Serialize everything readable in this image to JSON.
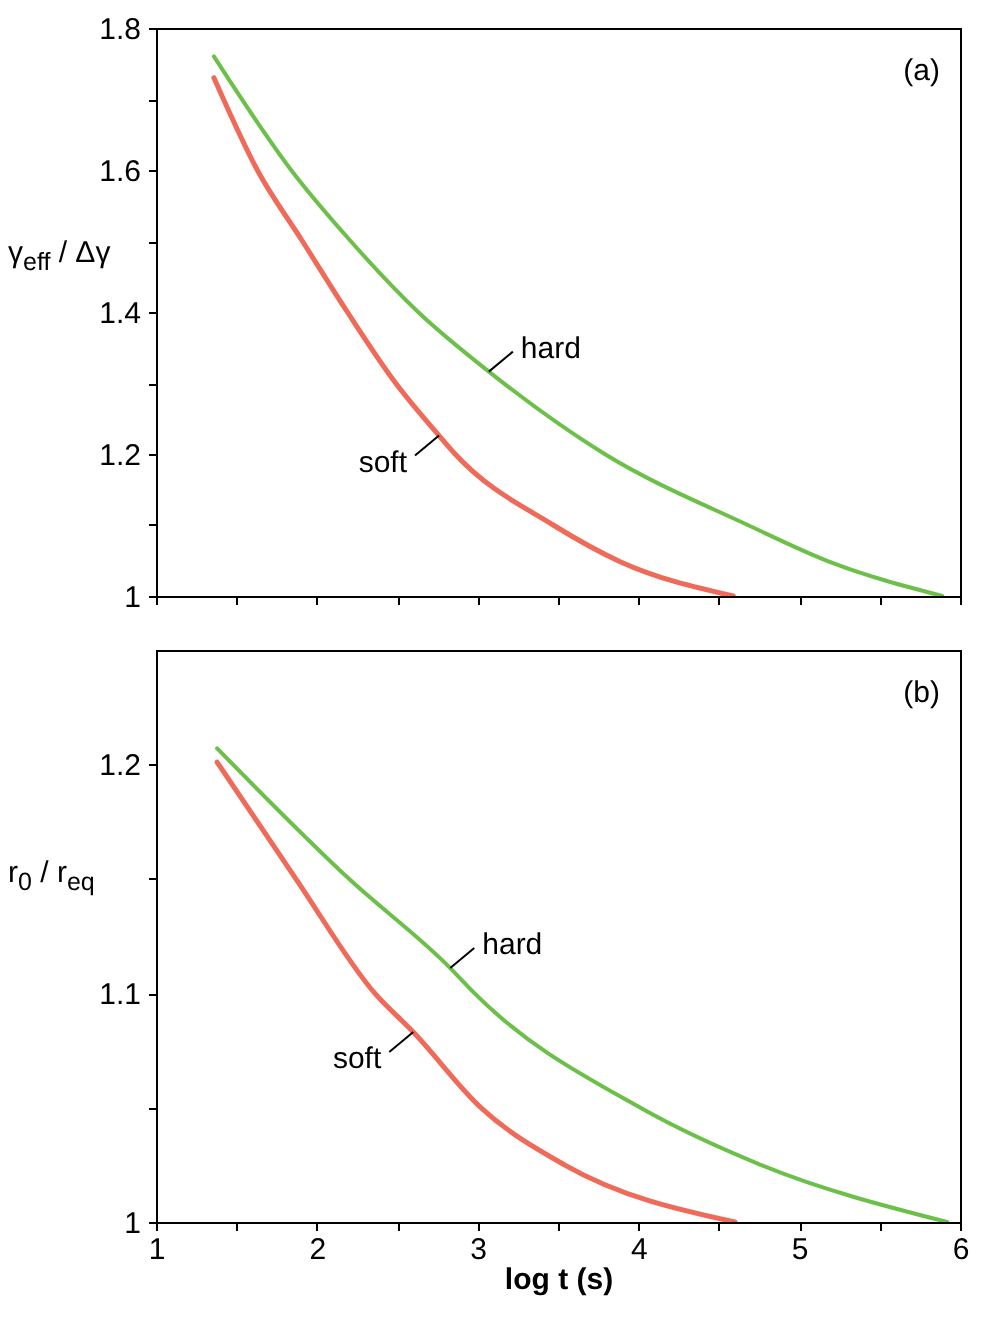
{
  "chart_data": [
    {
      "type": "line",
      "ylabel": "γ$_{eff}$ / Δγ",
      "xlim": [
        1,
        6
      ],
      "ylim": [
        1,
        1.8
      ],
      "xticks": [
        1,
        {
          "value": 1.5,
          "label": null
        },
        2,
        {
          "value": 2.5,
          "label": null
        },
        3,
        {
          "value": 3.5,
          "label": null
        },
        4,
        {
          "value": 4.5,
          "label": null
        },
        5,
        {
          "value": 5.5,
          "label": null
        },
        6
      ],
      "yticks": [
        1,
        {
          "value": 1.1,
          "label": null
        },
        1.2,
        {
          "value": 1.3,
          "label": null
        },
        1.4,
        {
          "value": 1.5,
          "label": null
        },
        1.6,
        {
          "value": 1.7,
          "label": null
        },
        1.8
      ],
      "tick_labels": "y",
      "grid": false,
      "series": [
        {
          "color": "#6cc04a",
          "x": [
            1.36,
            1.84,
            2.21,
            2.63,
            3.07,
            3.79,
            4.68,
            5.19,
            5.89
          ],
          "values": [
            1.76,
            1.6,
            1.5,
            1.4,
            1.316,
            1.2,
            1.1,
            1.048,
            1.0
          ]
        },
        {
          "color": "#f06a5a",
          "x": [
            1.36,
            1.63,
            1.91,
            2.19,
            2.49,
            2.76,
            2.86,
            3.47,
            3.89,
            4.59
          ],
          "values": [
            1.73,
            1.6,
            1.5,
            1.4,
            1.3,
            1.226,
            1.2,
            1.1,
            1.048,
            1.0
          ]
        }
      ],
      "annotations": [
        "(a)",
        {
          "text": "hard",
          "x": 3.07,
          "y": 1.316
        },
        {
          "text": "soft",
          "x": 2.76,
          "y": 1.226
        }
      ]
    },
    {
      "type": "line",
      "xlabel": "log t (s)",
      "ylabel": "r$_{0}$ / r$_{eq}$",
      "xlim": [
        1,
        6
      ],
      "ylim": [
        1,
        1.25
      ],
      "xticks": [
        1,
        {
          "value": 1.5,
          "label": null
        },
        2,
        {
          "value": 2.5,
          "label": null
        },
        3,
        {
          "value": 3.5,
          "label": null
        },
        4,
        {
          "value": 4.5,
          "label": null
        },
        5,
        {
          "value": 5.5,
          "label": null
        },
        6
      ],
      "yticks": [
        1,
        {
          "value": 1.05,
          "label": null
        },
        1.1,
        {
          "value": 1.15,
          "label": null
        },
        1.2
      ],
      "grid": false,
      "series": [
        {
          "color": "#6cc04a",
          "x": [
            1.38,
            2.2,
            2.83,
            2.98,
            4.01,
            4.76,
            5.92
          ],
          "values": [
            1.207,
            1.15,
            1.111,
            1.1,
            1.05,
            1.025,
            1.0
          ]
        },
        {
          "color": "#f06a5a",
          "x": [
            1.38,
            1.87,
            2.36,
            2.6,
            3.02,
            3.54,
            4.6
          ],
          "values": [
            1.201,
            1.15,
            1.1,
            1.083,
            1.05,
            1.025,
            1.0
          ]
        }
      ],
      "annotations": [
        "(b)",
        {
          "text": "hard",
          "x": 2.83,
          "y": 1.111
        },
        {
          "text": "soft",
          "x": 2.6,
          "y": 1.083
        }
      ]
    }
  ]
}
